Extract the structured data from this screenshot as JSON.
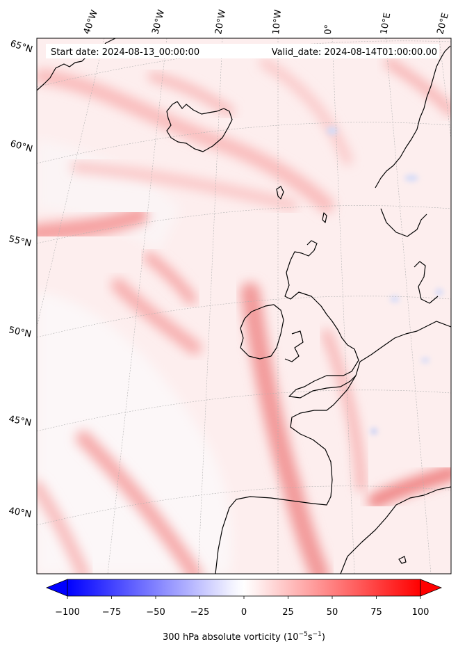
{
  "map": {
    "header": {
      "start_date": "Start date: 2024-08-13_00:00:00",
      "valid_date": "Valid_date: 2024-08-14T01:00:00.00"
    },
    "longitude_labels": [
      "40°W",
      "30°W",
      "20°W",
      "10°W",
      "0°",
      "10°E",
      "20°E"
    ],
    "latitude_labels": [
      "65°N",
      "60°N",
      "55°N",
      "50°N",
      "45°N",
      "40°N"
    ],
    "colorbar": {
      "label_prefix": "300 hPa absolute vorticity (10",
      "label_exp1": "−5",
      "label_mid": "s",
      "label_exp2": "−1",
      "label_suffix": ")",
      "ticks": [
        "−100",
        "−75",
        "−50",
        "−25",
        "0",
        "25",
        "50",
        "75",
        "100"
      ],
      "min": -100,
      "max": 100,
      "neg_color": "#0000ff",
      "pos_color": "#ff0000"
    },
    "colors": {
      "frame": "#000000",
      "coastline": "#000000",
      "gridline": "#b0b0b0",
      "background_field": "#fdeeee"
    }
  }
}
